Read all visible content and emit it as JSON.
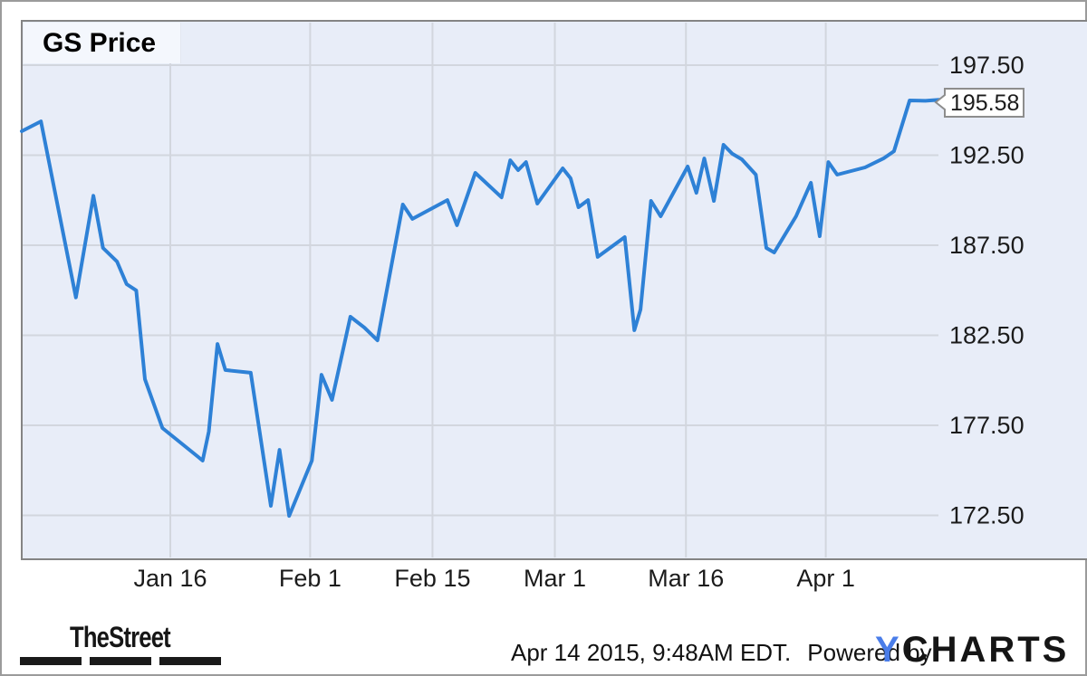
{
  "chart_data": {
    "type": "line",
    "title": "GS Price",
    "series_name": "GS Price",
    "last_label": "195.58",
    "xlabel": "",
    "ylabel": "",
    "ylim": [
      170,
      200
    ],
    "grid": true,
    "legend_position": "top-left-label",
    "x_axis": {
      "unit": "day_index",
      "ticks": [
        {
          "label": "Jan 16",
          "day": 17
        },
        {
          "label": "Feb 1",
          "day": 33
        },
        {
          "label": "Feb 15",
          "day": 47
        },
        {
          "label": "Mar 1",
          "day": 61
        },
        {
          "label": "Mar 16",
          "day": 76
        },
        {
          "label": "Apr 1",
          "day": 92
        }
      ]
    },
    "y_axis": {
      "ticks": [
        {
          "label": "197.50",
          "value": 197.5
        },
        {
          "label": "192.50",
          "value": 192.5
        },
        {
          "label": "187.50",
          "value": 187.5
        },
        {
          "label": "182.50",
          "value": 182.5
        },
        {
          "label": "177.50",
          "value": 177.5
        },
        {
          "label": "172.50",
          "value": 172.5
        }
      ]
    },
    "points": [
      [
        0.0,
        193.83
      ],
      [
        2.2,
        194.38
      ],
      [
        6.2,
        184.6
      ],
      [
        8.2,
        190.25
      ],
      [
        9.3,
        187.35
      ],
      [
        10.9,
        186.59
      ],
      [
        12.0,
        185.34
      ],
      [
        13.1,
        184.99
      ],
      [
        14.1,
        180.06
      ],
      [
        16.1,
        177.35
      ],
      [
        20.2,
        175.74
      ],
      [
        20.7,
        175.54
      ],
      [
        21.4,
        177.15
      ],
      [
        22.4,
        182.02
      ],
      [
        23.3,
        180.57
      ],
      [
        26.2,
        180.42
      ],
      [
        28.5,
        173.03
      ],
      [
        29.5,
        176.14
      ],
      [
        30.6,
        172.47
      ],
      [
        33.2,
        175.54
      ],
      [
        34.3,
        180.31
      ],
      [
        35.5,
        178.91
      ],
      [
        37.6,
        183.53
      ],
      [
        39.2,
        182.93
      ],
      [
        40.7,
        182.22
      ],
      [
        43.6,
        189.76
      ],
      [
        44.7,
        188.96
      ],
      [
        48.7,
        190.01
      ],
      [
        49.8,
        188.61
      ],
      [
        51.9,
        191.52
      ],
      [
        54.9,
        190.16
      ],
      [
        55.9,
        192.22
      ],
      [
        56.8,
        191.67
      ],
      [
        57.7,
        192.12
      ],
      [
        59.0,
        189.81
      ],
      [
        61.9,
        191.77
      ],
      [
        62.8,
        191.22
      ],
      [
        63.7,
        189.61
      ],
      [
        64.8,
        190.01
      ],
      [
        65.9,
        186.85
      ],
      [
        69.0,
        187.95
      ],
      [
        70.1,
        182.78
      ],
      [
        70.8,
        183.93
      ],
      [
        72.0,
        189.96
      ],
      [
        73.1,
        189.11
      ],
      [
        76.2,
        191.87
      ],
      [
        77.2,
        190.41
      ],
      [
        78.1,
        192.32
      ],
      [
        79.2,
        189.96
      ],
      [
        80.3,
        193.08
      ],
      [
        81.3,
        192.58
      ],
      [
        82.4,
        192.27
      ],
      [
        84.0,
        191.42
      ],
      [
        85.2,
        187.35
      ],
      [
        86.1,
        187.1
      ],
      [
        88.6,
        189.11
      ],
      [
        90.3,
        190.97
      ],
      [
        91.3,
        188.0
      ],
      [
        92.3,
        192.12
      ],
      [
        93.3,
        191.42
      ],
      [
        96.5,
        191.82
      ],
      [
        98.6,
        192.32
      ],
      [
        99.8,
        192.72
      ],
      [
        101.6,
        195.54
      ],
      [
        103.4,
        195.52
      ],
      [
        105.0,
        195.58
      ]
    ]
  },
  "callout": {
    "value": "195.58"
  },
  "footer": {
    "thestreet": "TheStreet",
    "timestamp": "Apr 14 2015, 9:48AM EDT.",
    "powered_by": "Powered by",
    "ycharts_y": "Y",
    "ycharts_rest": "CHARTS"
  },
  "colors": {
    "line": "#2e81d6",
    "plot_bg": "#e8edf8",
    "grid": "#d2d6de",
    "plot_border": "#848484",
    "title_bg": "#f4f7fd",
    "callout_text": "#3a85d8",
    "callout_border": "#8d8d8d",
    "tick_text": "#1b1b1b",
    "ycharts_blue": "#4a7de9"
  }
}
